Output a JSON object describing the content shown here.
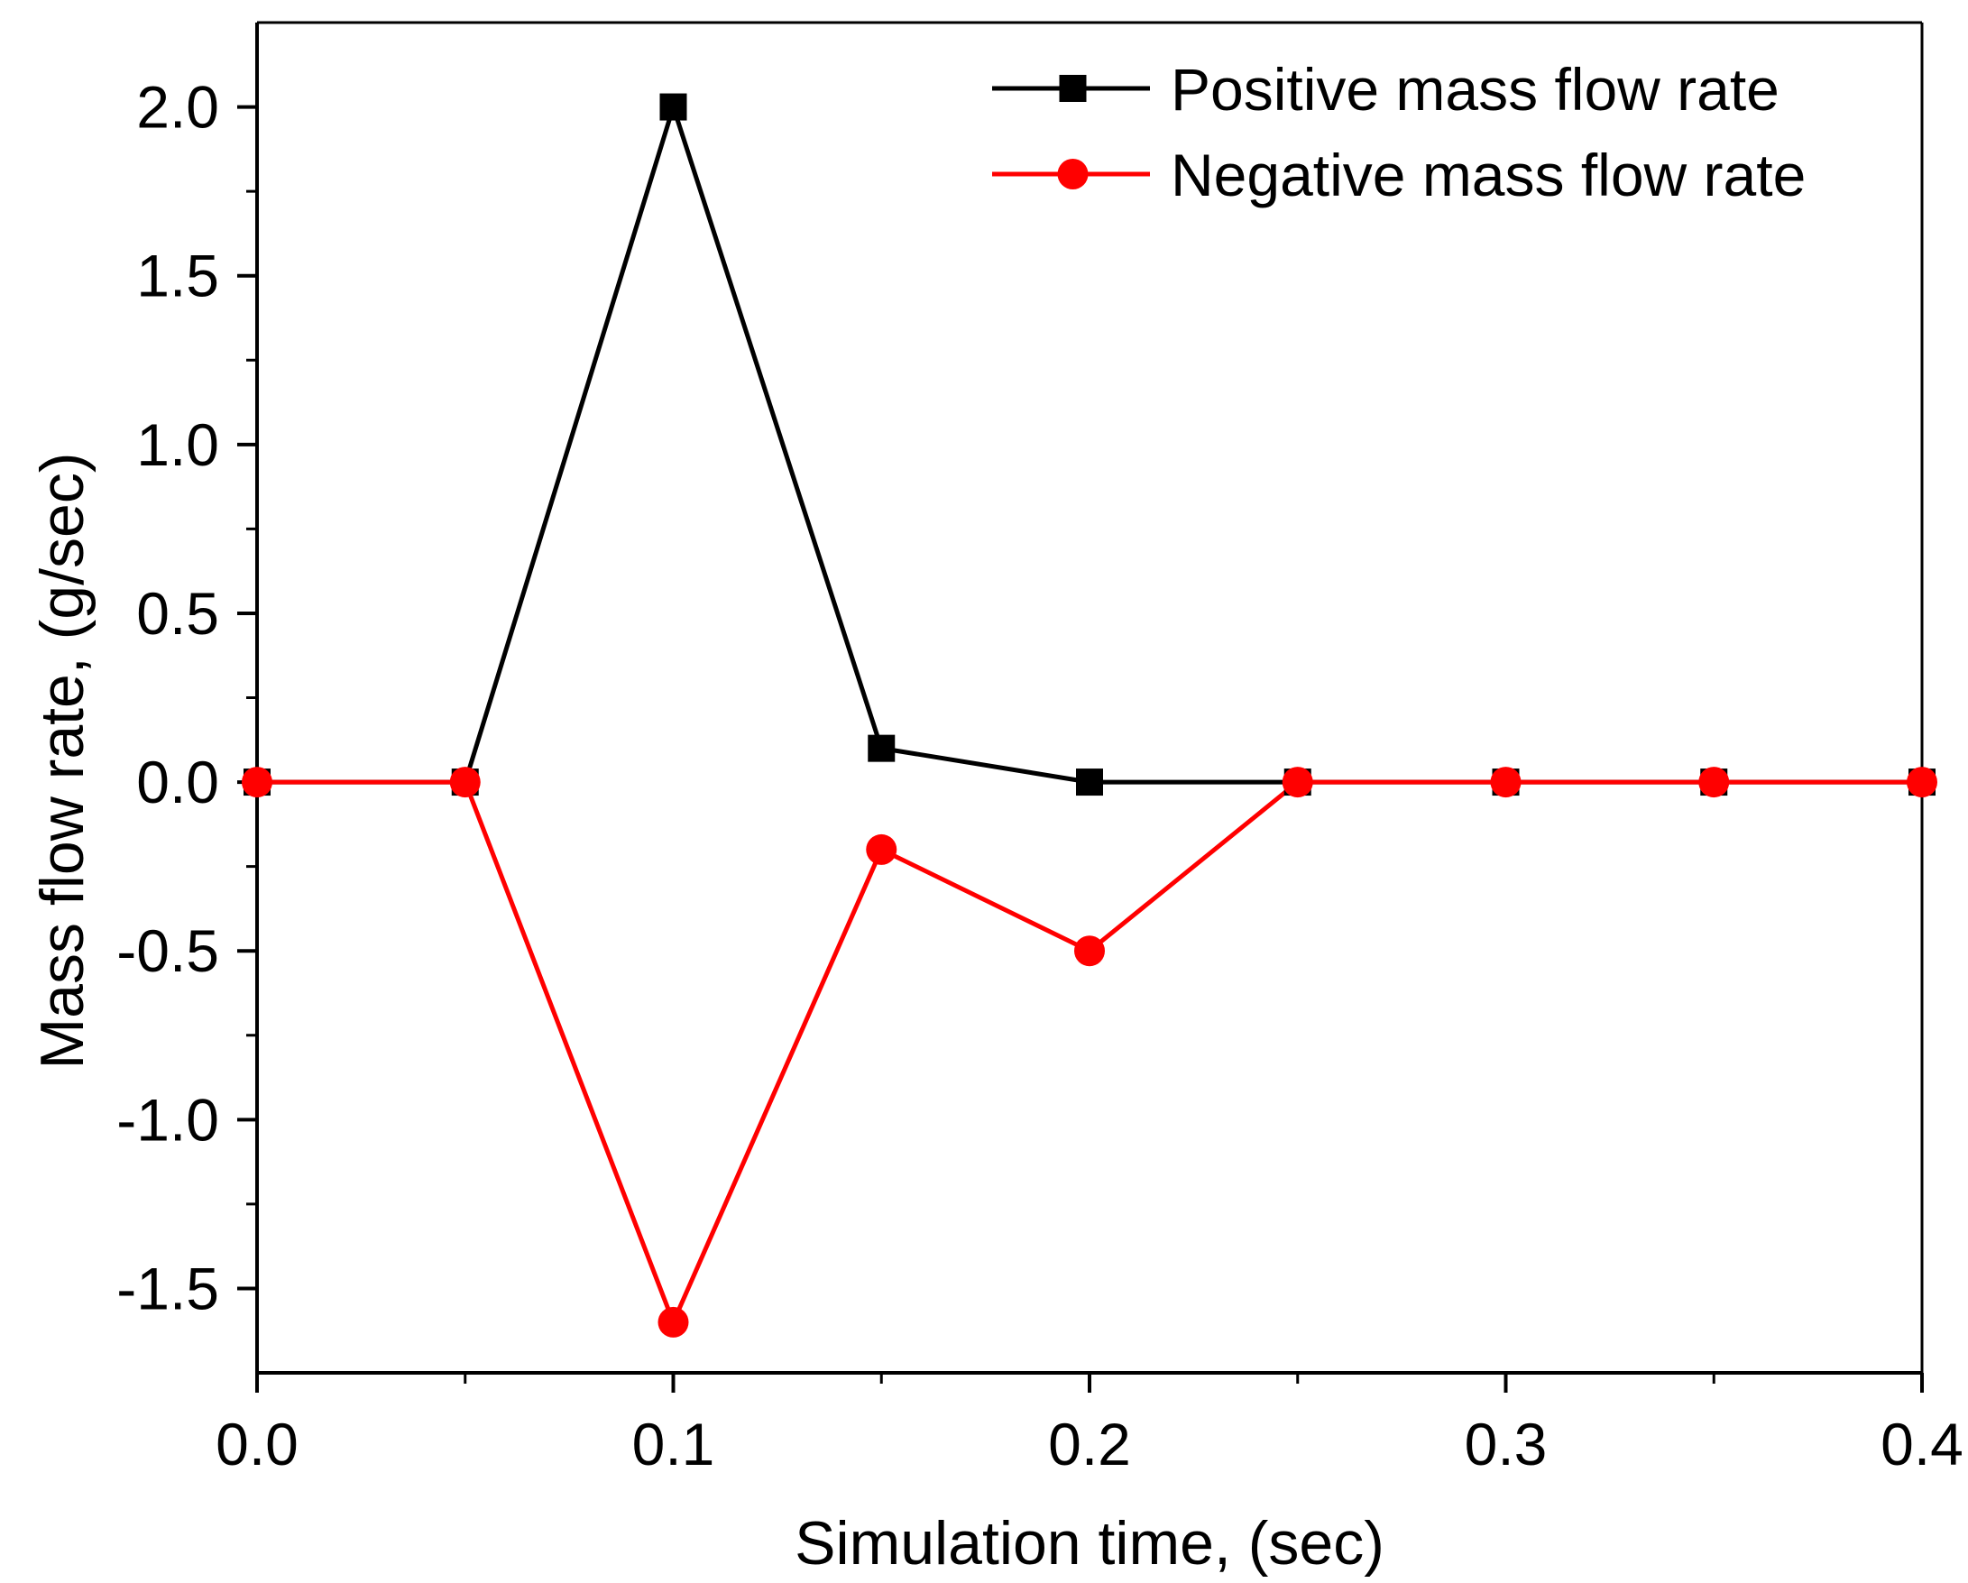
{
  "chart_data": {
    "type": "line",
    "title": "",
    "xlabel": "Simulation time, (sec)",
    "ylabel": "Mass flow rate, (g/sec)",
    "xlim": [
      0.0,
      0.4
    ],
    "ylim": [
      -1.75,
      2.25
    ],
    "xticks": [
      0.0,
      0.1,
      0.2,
      0.3,
      0.4
    ],
    "xtick_labels": [
      "0.0",
      "0.1",
      "0.2",
      "0.3",
      "0.4"
    ],
    "xminor_ticks": [
      0.05,
      0.15,
      0.25,
      0.35
    ],
    "yticks": [
      -1.5,
      -1.0,
      -0.5,
      0.0,
      0.5,
      1.0,
      1.5,
      2.0
    ],
    "ytick_labels": [
      "-1.5",
      "-1.0",
      "-0.5",
      "0.0",
      "0.5",
      "1.0",
      "1.5",
      "2.0"
    ],
    "yminor_ticks": [
      -1.25,
      -0.75,
      -0.25,
      0.25,
      0.75,
      1.25,
      1.75
    ],
    "grid": false,
    "legend_position": "top-right",
    "x": [
      0.0,
      0.05,
      0.1,
      0.15,
      0.2,
      0.25,
      0.3,
      0.35,
      0.4
    ],
    "series": [
      {
        "name": "Positive mass flow rate",
        "color": "#000000",
        "marker": "square",
        "values": [
          0.0,
          0.0,
          2.0,
          0.1,
          0.0,
          0.0,
          0.0,
          0.0,
          0.0
        ]
      },
      {
        "name": "Negative mass flow rate",
        "color": "#ff0000",
        "marker": "circle",
        "values": [
          0.0,
          0.0,
          -1.6,
          -0.2,
          -0.5,
          0.0,
          0.0,
          0.0,
          0.0
        ]
      }
    ]
  }
}
